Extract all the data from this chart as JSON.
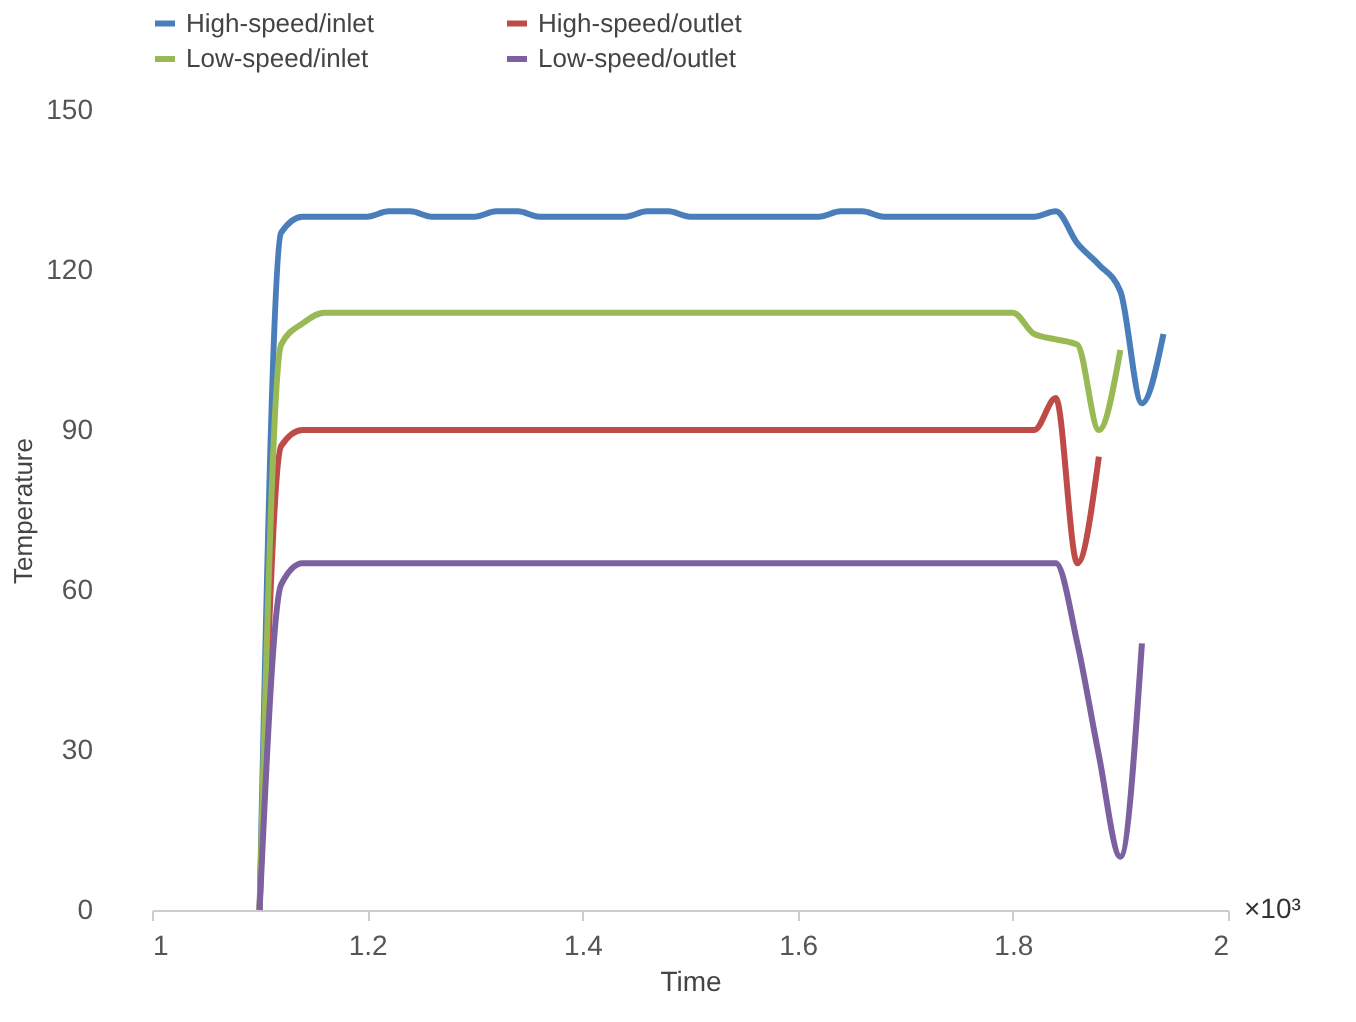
{
  "chart_data": {
    "type": "line",
    "xlabel": "Time",
    "ylabel": "Temperature",
    "x": [
      1.1,
      1.12,
      1.14,
      1.16,
      1.18,
      1.2,
      1.22,
      1.24,
      1.26,
      1.28,
      1.3,
      1.32,
      1.34,
      1.36,
      1.38,
      1.4,
      1.42,
      1.44,
      1.46,
      1.48,
      1.5,
      1.52,
      1.54,
      1.56,
      1.58,
      1.6,
      1.62,
      1.64,
      1.66,
      1.68,
      1.7,
      1.72,
      1.74,
      1.76,
      1.78,
      1.8,
      1.82,
      1.84,
      1.86,
      1.88,
      1.9,
      1.92,
      1.94
    ],
    "series": [
      {
        "name": "High-speed/inlet",
        "color": "#4a7ebb",
        "values": [
          0,
          127,
          130,
          130,
          130,
          130,
          131,
          131,
          130,
          130,
          130,
          131,
          131,
          130,
          130,
          130,
          130,
          130,
          131,
          131,
          130,
          130,
          130,
          130,
          130,
          130,
          130,
          131,
          131,
          130,
          130,
          130,
          130,
          130,
          130,
          130,
          130,
          131,
          125,
          121,
          116,
          95,
          108
        ]
      },
      {
        "name": "High-speed/outlet",
        "color": "#be4b48",
        "values": [
          0,
          87,
          90,
          90,
          90,
          90,
          90,
          90,
          90,
          90,
          90,
          90,
          90,
          90,
          90,
          90,
          90,
          90,
          90,
          90,
          90,
          90,
          90,
          90,
          90,
          90,
          90,
          90,
          90,
          90,
          90,
          90,
          90,
          90,
          90,
          90,
          90,
          96,
          65,
          85,
          null,
          null,
          null
        ]
      },
      {
        "name": "Low-speed/inlet",
        "color": "#98b954",
        "values": [
          0,
          106,
          110,
          112,
          112,
          112,
          112,
          112,
          112,
          112,
          112,
          112,
          112,
          112,
          112,
          112,
          112,
          112,
          112,
          112,
          112,
          112,
          112,
          112,
          112,
          112,
          112,
          112,
          112,
          112,
          112,
          112,
          112,
          112,
          112,
          112,
          108,
          107,
          106,
          90,
          105,
          null,
          null
        ]
      },
      {
        "name": "Low-speed/outlet",
        "color": "#7d60a0",
        "values": [
          0,
          61,
          65,
          65,
          65,
          65,
          65,
          65,
          65,
          65,
          65,
          65,
          65,
          65,
          65,
          65,
          65,
          65,
          65,
          65,
          65,
          65,
          65,
          65,
          65,
          65,
          65,
          65,
          65,
          65,
          65,
          65,
          65,
          65,
          65,
          65,
          65,
          65,
          50,
          29,
          10,
          50,
          null
        ]
      }
    ],
    "xlim": [
      1,
      2
    ],
    "xticks": [
      1,
      1.2,
      1.4,
      1.6,
      1.8,
      2
    ],
    "ylim": [
      0,
      150
    ],
    "yticks": [
      0,
      30,
      60,
      90,
      120,
      150
    ],
    "grid": false,
    "legend": "top",
    "line_style": "solid",
    "marker": "none",
    "annotations": [
      "×10³"
    ]
  }
}
